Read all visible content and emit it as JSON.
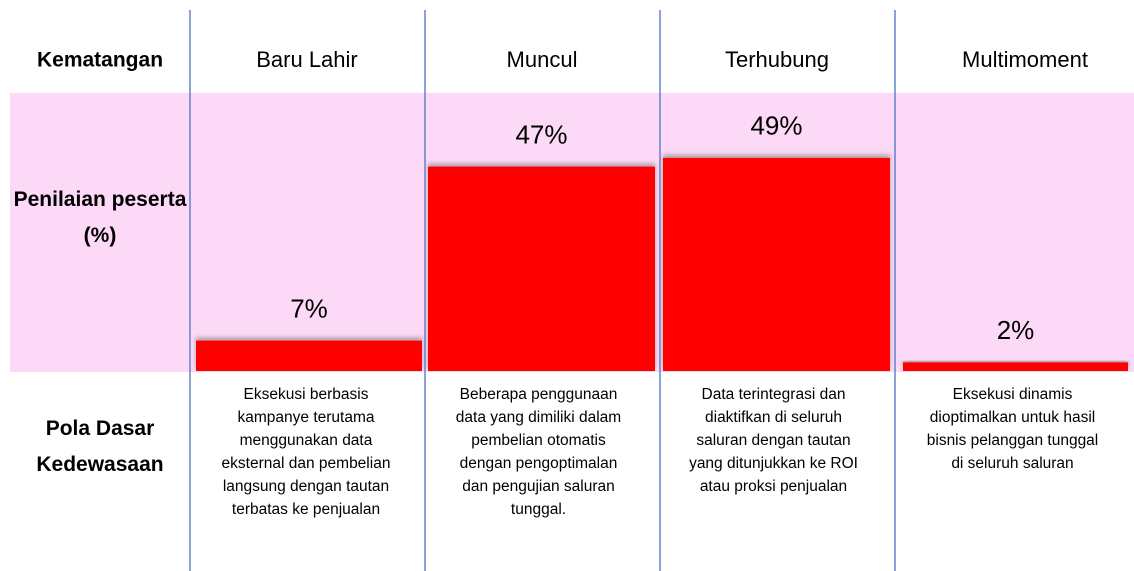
{
  "chart_data": {
    "type": "bar",
    "row_labels": [
      "Kematangan",
      "Penilaian peserta (%)",
      "Pola Dasar Kedewasaan"
    ],
    "categories": [
      "Baru Lahir",
      "Muncul",
      "Terhubung",
      "Multimoment"
    ],
    "values": [
      7,
      47,
      49,
      2
    ],
    "value_labels": [
      "7%",
      "47%",
      "49%",
      "2%"
    ],
    "color": "#ff0000",
    "descriptions": [
      [
        "Eksekusi berbasis",
        "kampanye terutama",
        "menggunakan data",
        "eksternal dan pembelian",
        "langsung dengan tautan",
        "terbatas ke penjualan"
      ],
      [
        "Beberapa penggunaan",
        "data yang dimiliki dalam",
        "pembelian otomatis",
        "dengan pengoptimalan",
        "dan pengujian saluran",
        "tunggal."
      ],
      [
        "Data terintegrasi dan",
        "diaktifkan di seluruh",
        "saluran dengan tautan",
        "yang ditunjukkan ke ROI",
        "atau proksi penjualan"
      ],
      [
        "Eksekusi dinamis",
        "dioptimalkan untuk hasil",
        "bisnis pelanggan tunggal",
        "di seluruh saluran"
      ]
    ]
  }
}
